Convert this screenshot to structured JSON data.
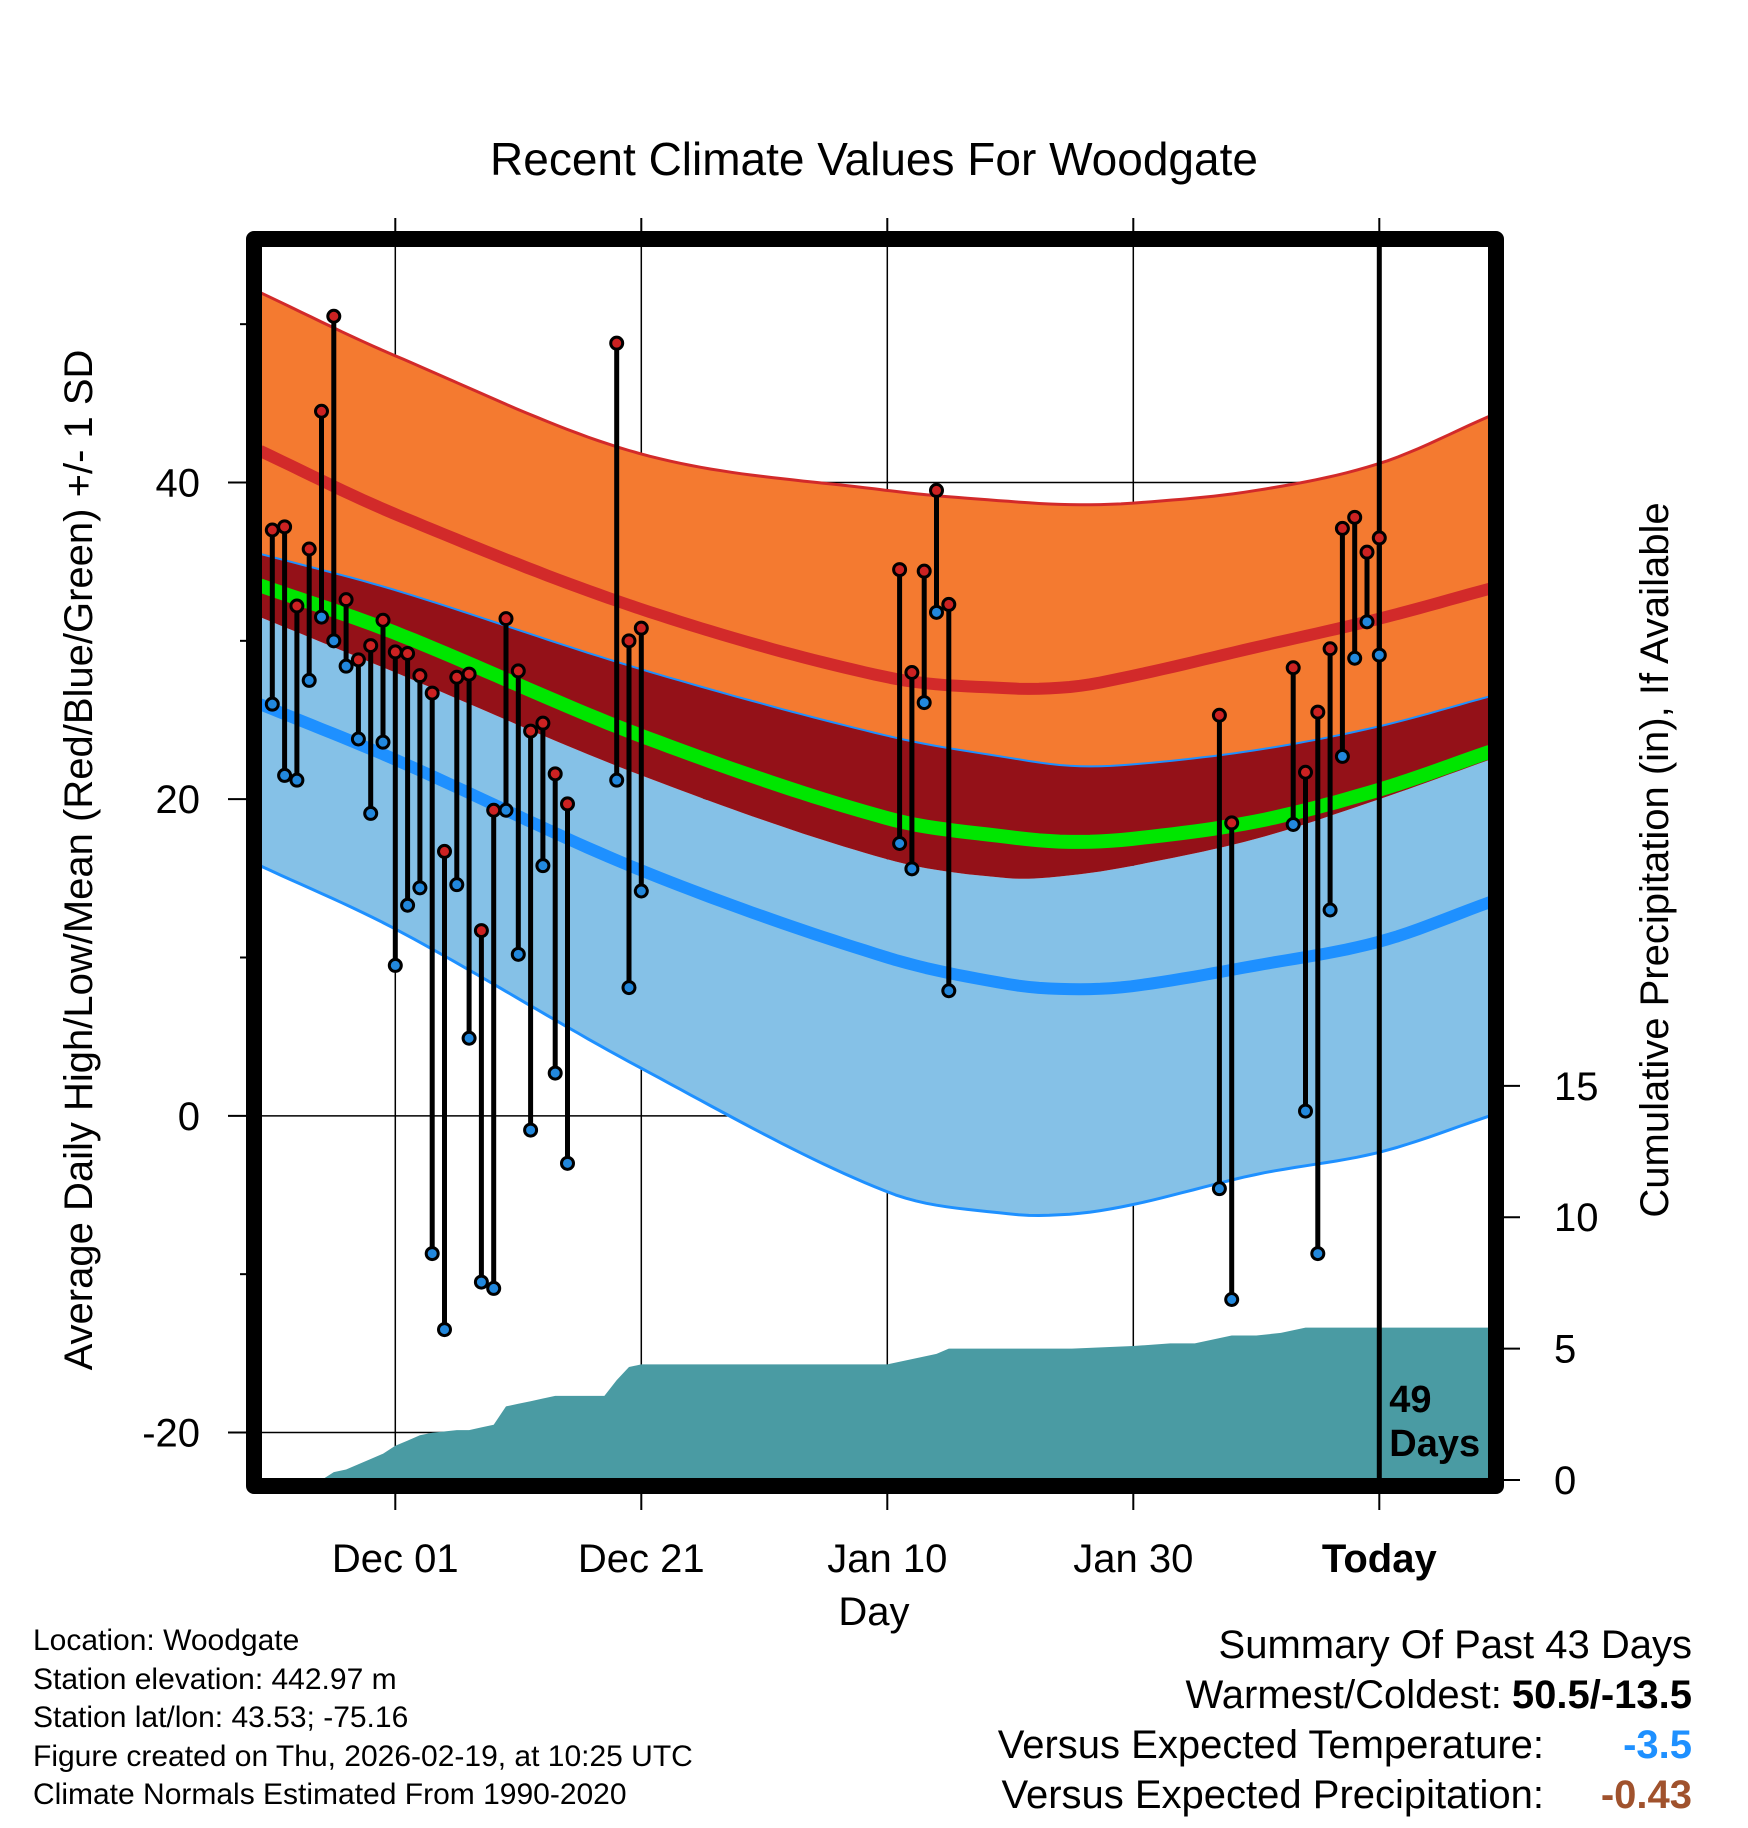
{
  "chart_data": {
    "type": "line",
    "title": "Recent Climate Values For Woodgate",
    "xlabel": "Day",
    "ylabel": "Average Daily High/Low/Mean (Red/Blue/Green) +/- 1 SD",
    "y2label": "Cumulative Precipitation (in), If Available",
    "xlim": [
      -11,
      89
    ],
    "ylim": [
      -23,
      55
    ],
    "y2lim": [
      0,
      47
    ],
    "x_ticks": [
      {
        "x": 0,
        "label": "Dec 01"
      },
      {
        "x": 20,
        "label": "Dec 21"
      },
      {
        "x": 40,
        "label": "Jan 10"
      },
      {
        "x": 60,
        "label": "Jan 30"
      },
      {
        "x": 80,
        "label": "Today"
      }
    ],
    "y_ticks": [
      -20,
      0,
      20,
      40
    ],
    "y2_ticks": [
      0,
      5,
      10,
      15
    ],
    "today_x": 80,
    "today_label": [
      "49",
      "Days"
    ],
    "normals": {
      "x": [
        -11,
        0,
        20,
        40,
        50,
        55,
        60,
        70,
        80,
        89
      ],
      "high_mean": [
        42,
        38,
        32,
        27.7,
        27,
        27.1,
        27.8,
        29.6,
        31.4,
        33.3
      ],
      "high_plus_sd": [
        52,
        48,
        41.8,
        39.5,
        38.8,
        38.6,
        38.7,
        39.5,
        41.2,
        44.2
      ],
      "high_minus_sd": [
        35.5,
        33.2,
        28.2,
        24,
        22.6,
        22.1,
        22.2,
        23.1,
        24.6,
        26.5
      ],
      "mean": [
        33.5,
        30.5,
        24,
        18.8,
        17.6,
        17.3,
        17.5,
        18.6,
        20.6,
        23
      ],
      "low_mean": [
        26,
        22.5,
        15.5,
        10,
        8.3,
        8,
        8.2,
        9.5,
        11,
        13.5
      ],
      "low_plus_sd": [
        31.5,
        28,
        21.5,
        16.2,
        15,
        15.2,
        15.8,
        17.5,
        20,
        22.5
      ],
      "low_minus_sd": [
        15.8,
        11.8,
        3,
        -4.8,
        -6.2,
        -6.2,
        -5.6,
        -3.7,
        -2.3,
        0
      ]
    },
    "series": [
      {
        "name": "Daily High",
        "color": "#cc2222",
        "x": [
          -10,
          -9,
          -8,
          -7,
          -6,
          -5,
          -4,
          -3,
          -2,
          -1,
          0,
          1,
          2,
          3,
          4,
          5,
          6,
          7,
          8,
          9,
          10,
          11,
          12,
          13,
          14,
          18,
          19,
          20,
          41,
          42,
          43,
          44,
          45,
          67,
          68,
          73,
          74,
          75,
          76,
          77,
          78,
          79,
          80
        ],
        "values": [
          37,
          37.2,
          32.2,
          35.8,
          44.5,
          50.5,
          32.6,
          28.8,
          29.7,
          31.3,
          29.3,
          29.2,
          27.8,
          26.7,
          16.7,
          27.7,
          27.9,
          11.7,
          19.3,
          31.4,
          28.1,
          24.3,
          24.8,
          21.6,
          19.7,
          48.8,
          30,
          30.8,
          34.5,
          28,
          34.4,
          39.5,
          32.3,
          25.3,
          18.5,
          28.3,
          21.7,
          25.5,
          29.5,
          37.1,
          37.8,
          35.6,
          36.5
        ]
      },
      {
        "name": "Daily Low",
        "color": "#2288dd",
        "x": [
          -10,
          -9,
          -8,
          -7,
          -6,
          -5,
          -4,
          -3,
          -2,
          -1,
          0,
          1,
          2,
          3,
          4,
          5,
          6,
          7,
          8,
          9,
          10,
          11,
          12,
          13,
          14,
          18,
          19,
          20,
          41,
          42,
          43,
          44,
          45,
          67,
          68,
          73,
          74,
          75,
          76,
          77,
          78,
          79,
          80
        ],
        "values": [
          26,
          21.5,
          21.2,
          27.5,
          31.5,
          30,
          28.4,
          23.8,
          19.1,
          23.6,
          9.5,
          13.3,
          14.4,
          -8.7,
          -13.5,
          14.6,
          4.9,
          -10.5,
          -10.9,
          19.3,
          10.2,
          -0.9,
          15.8,
          2.7,
          -3,
          21.2,
          8.1,
          14.2,
          17.2,
          15.6,
          26.1,
          31.8,
          7.9,
          -4.6,
          -11.6,
          18.4,
          0.3,
          -8.7,
          13,
          22.7,
          28.9,
          31.2,
          29.1
        ]
      }
    ],
    "precipitation_cumulative": {
      "x": [
        -11,
        -6,
        -5,
        -4,
        -3,
        -2,
        -1,
        0,
        1,
        2,
        3,
        5,
        6,
        7,
        8,
        9,
        10,
        11,
        12,
        13,
        14,
        15,
        16,
        17,
        18,
        19,
        20,
        21,
        23,
        25,
        30,
        35,
        40,
        41,
        42,
        43,
        44,
        45,
        50,
        55,
        60,
        63,
        65,
        67,
        68,
        70,
        72,
        73,
        74,
        75,
        80,
        89
      ],
      "values": [
        0,
        0,
        0.3,
        0.4,
        0.6,
        0.8,
        1.0,
        1.3,
        1.5,
        1.7,
        1.8,
        1.9,
        1.9,
        2.0,
        2.1,
        2.8,
        2.9,
        3.0,
        3.1,
        3.2,
        3.2,
        3.2,
        3.2,
        3.2,
        3.8,
        4.3,
        4.4,
        4.4,
        4.4,
        4.4,
        4.4,
        4.4,
        4.4,
        4.5,
        4.6,
        4.7,
        4.8,
        5.0,
        5.0,
        5.0,
        5.1,
        5.2,
        5.2,
        5.4,
        5.5,
        5.5,
        5.6,
        5.7,
        5.8,
        5.8,
        5.8,
        5.8
      ]
    },
    "colors": {
      "high_band": "#f47a30",
      "high_line": "#d22a2a",
      "mean_band": "#941118",
      "mean_line": "#00e600",
      "low_band": "#85c1e7",
      "low_line": "#1e90ff",
      "precip": "#4a9ba3"
    }
  },
  "info": {
    "location": "Location: Woodgate",
    "elevation": "Station elevation: 442.97 m",
    "latlon": "Station lat/lon: 43.53; -75.16",
    "created": "Figure created on Thu, 2026-02-19, at 10:25 UTC",
    "normals": "Climate Normals Estimated From 1990-2020"
  },
  "summary": {
    "title": "Summary Of Past 43 Days",
    "warmest_coldest_label": "Warmest/Coldest:",
    "warmest_coldest_value": "50.5/-13.5",
    "temp_label": "Versus Expected Temperature:",
    "temp_value": "-3.5",
    "temp_color": "#1e90ff",
    "precip_label": "Versus Expected Precipitation:",
    "precip_value": "-0.43",
    "precip_color": "#a0522d"
  }
}
